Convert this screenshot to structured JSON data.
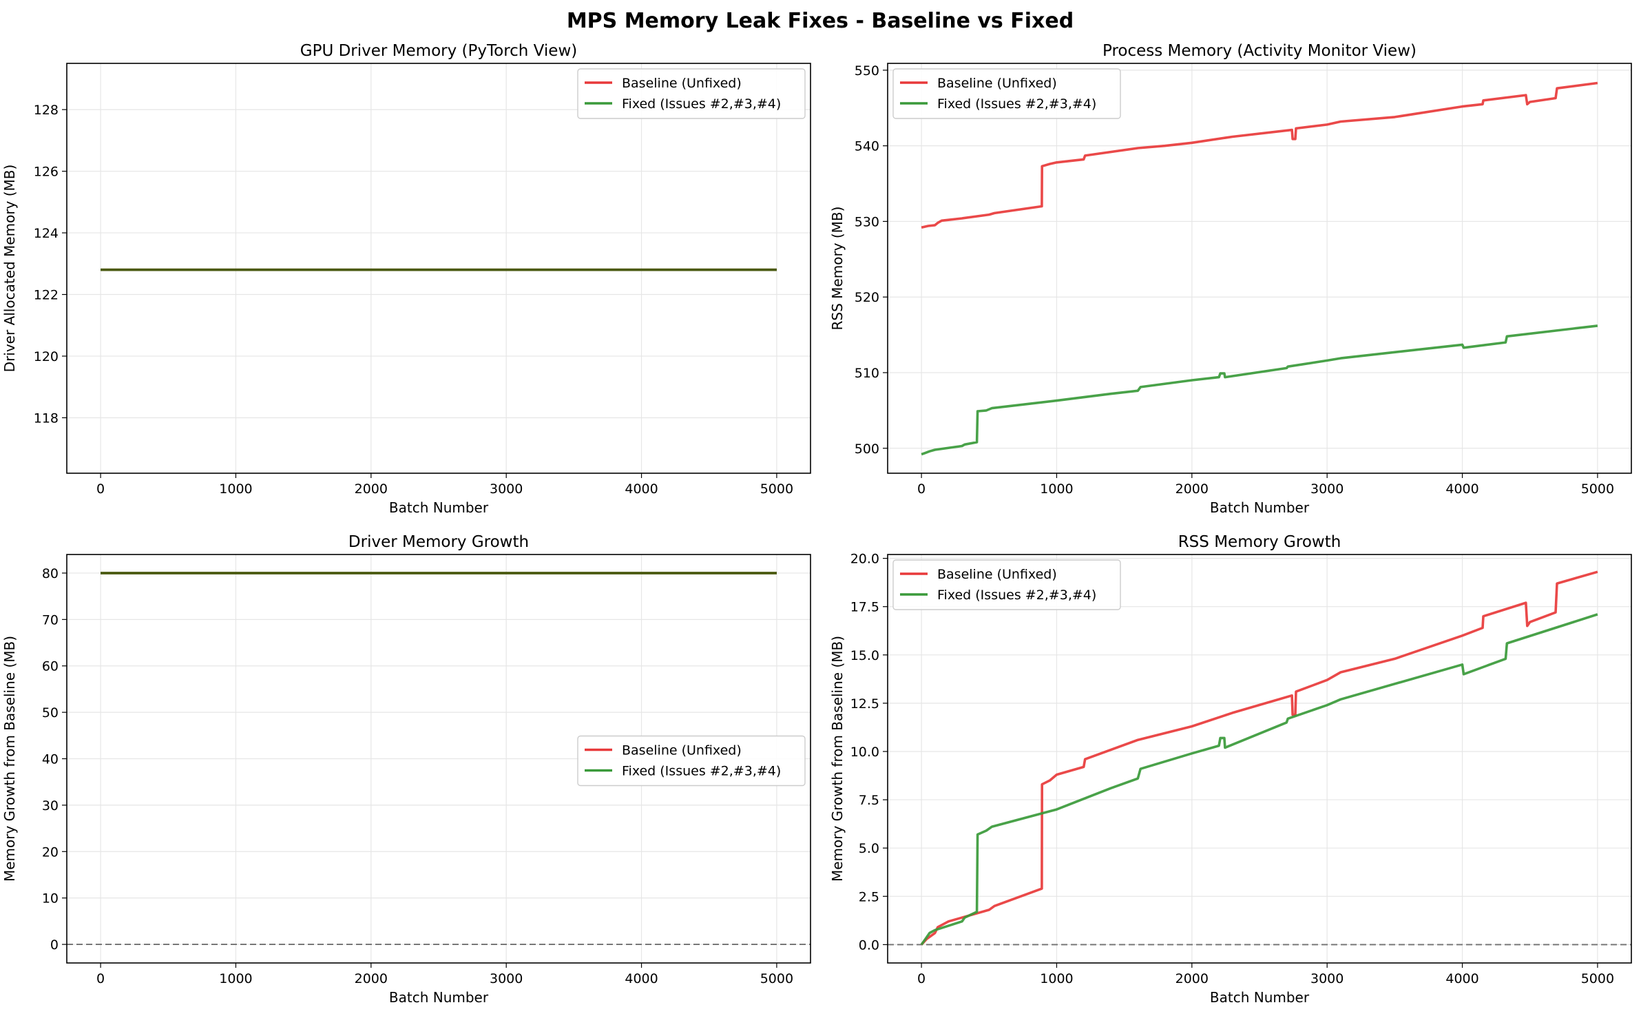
{
  "figure": {
    "title": "MPS Memory Leak Fixes - Baseline vs Fixed"
  },
  "colors": {
    "baseline": "#e8393a",
    "fixed": "#3a9a3a",
    "overlap": "#4a5a10",
    "zero_line": "#777777",
    "grid": "#e6e6e6"
  },
  "chart_data": [
    {
      "type": "line",
      "title": "GPU Driver Memory (PyTorch View)",
      "xlabel": "Batch Number",
      "ylabel": "Driver Allocated Memory (MB)",
      "xlim": [
        -250,
        5250
      ],
      "ylim": [
        116.2,
        129.5
      ],
      "xticks": [
        0,
        1000,
        2000,
        3000,
        4000,
        5000
      ],
      "yticks": [
        118,
        120,
        122,
        124,
        126,
        128
      ],
      "grid": true,
      "legend_position": "upper-right",
      "zero_line": false,
      "series": [
        {
          "name": "Baseline (Unfixed)",
          "color": "baseline",
          "points": [
            [
              0,
              122.8
            ],
            [
              5000,
              122.8
            ]
          ]
        },
        {
          "name": "Fixed (Issues #2,#3,#4)",
          "color": "fixed",
          "points": [
            [
              0,
              122.8
            ],
            [
              5000,
              122.8
            ]
          ]
        }
      ],
      "overlap_line": {
        "points": [
          [
            0,
            122.8
          ],
          [
            5000,
            122.8
          ]
        ]
      }
    },
    {
      "type": "line",
      "title": "Process Memory (Activity Monitor View)",
      "xlabel": "Batch Number",
      "ylabel": "RSS Memory (MB)",
      "xlim": [
        -250,
        5250
      ],
      "ylim": [
        496.7,
        550.9
      ],
      "xticks": [
        0,
        1000,
        2000,
        3000,
        4000,
        5000
      ],
      "yticks": [
        500,
        510,
        520,
        530,
        540,
        550
      ],
      "grid": true,
      "legend_position": "upper-left",
      "zero_line": false,
      "series": [
        {
          "name": "Baseline (Unfixed)",
          "color": "baseline",
          "points": [
            [
              0,
              529.2
            ],
            [
              50,
              529.4
            ],
            [
              100,
              529.5
            ],
            [
              120,
              529.8
            ],
            [
              150,
              530.1
            ],
            [
              300,
              530.4
            ],
            [
              500,
              530.9
            ],
            [
              540,
              531.1
            ],
            [
              890,
              532.0
            ],
            [
              892,
              537.3
            ],
            [
              950,
              537.6
            ],
            [
              1000,
              537.8
            ],
            [
              1200,
              538.2
            ],
            [
              1210,
              538.7
            ],
            [
              1600,
              539.7
            ],
            [
              1800,
              540.0
            ],
            [
              2000,
              540.4
            ],
            [
              2300,
              541.2
            ],
            [
              2740,
              542.1
            ],
            [
              2745,
              540.9
            ],
            [
              2765,
              540.9
            ],
            [
              2770,
              542.3
            ],
            [
              3000,
              542.8
            ],
            [
              3100,
              543.2
            ],
            [
              3500,
              543.8
            ],
            [
              4000,
              545.2
            ],
            [
              4150,
              545.5
            ],
            [
              4155,
              546.0
            ],
            [
              4470,
              546.7
            ],
            [
              4480,
              545.5
            ],
            [
              4500,
              545.8
            ],
            [
              4690,
              546.3
            ],
            [
              4700,
              547.6
            ],
            [
              5000,
              548.3
            ]
          ]
        },
        {
          "name": "Fixed (Issues #2,#3,#4)",
          "color": "fixed",
          "points": [
            [
              0,
              499.2
            ],
            [
              30,
              499.4
            ],
            [
              60,
              499.6
            ],
            [
              100,
              499.8
            ],
            [
              300,
              500.3
            ],
            [
              320,
              500.5
            ],
            [
              410,
              500.8
            ],
            [
              415,
              504.9
            ],
            [
              480,
              505.0
            ],
            [
              520,
              505.3
            ],
            [
              1000,
              506.3
            ],
            [
              1400,
              507.2
            ],
            [
              1600,
              507.6
            ],
            [
              1620,
              508.1
            ],
            [
              2000,
              509.0
            ],
            [
              2200,
              509.4
            ],
            [
              2210,
              509.9
            ],
            [
              2240,
              509.9
            ],
            [
              2245,
              509.4
            ],
            [
              2700,
              510.6
            ],
            [
              2710,
              510.8
            ],
            [
              3000,
              511.6
            ],
            [
              3100,
              511.9
            ],
            [
              4000,
              513.7
            ],
            [
              4010,
              513.3
            ],
            [
              4320,
              514.0
            ],
            [
              4330,
              514.8
            ],
            [
              5000,
              516.2
            ]
          ]
        }
      ]
    },
    {
      "type": "line",
      "title": "Driver Memory Growth",
      "xlabel": "Batch Number",
      "ylabel": "Memory Growth from Baseline (MB)",
      "xlim": [
        -250,
        5250
      ],
      "ylim": [
        -4.0,
        84.0
      ],
      "xticks": [
        0,
        1000,
        2000,
        3000,
        4000,
        5000
      ],
      "yticks": [
        0,
        10,
        20,
        30,
        40,
        50,
        60,
        70,
        80
      ],
      "grid": true,
      "legend_position": "center-right",
      "zero_line": true,
      "series": [
        {
          "name": "Baseline (Unfixed)",
          "color": "baseline",
          "points": [
            [
              0,
              80.0
            ],
            [
              5000,
              80.0
            ]
          ]
        },
        {
          "name": "Fixed (Issues #2,#3,#4)",
          "color": "fixed",
          "points": [
            [
              0,
              80.0
            ],
            [
              5000,
              80.0
            ]
          ]
        }
      ],
      "overlap_line": {
        "points": [
          [
            0,
            80.0
          ],
          [
            5000,
            80.0
          ]
        ]
      }
    },
    {
      "type": "line",
      "title": "RSS Memory Growth",
      "xlabel": "Batch Number",
      "ylabel": "Memory Growth from Baseline (MB)",
      "xlim": [
        -250,
        5250
      ],
      "ylim": [
        -0.95,
        20.2
      ],
      "xticks": [
        0,
        1000,
        2000,
        3000,
        4000,
        5000
      ],
      "yticks": [
        0.0,
        2.5,
        5.0,
        7.5,
        10.0,
        12.5,
        15.0,
        17.5,
        20.0
      ],
      "grid": true,
      "legend_position": "upper-left",
      "zero_line": true,
      "series": [
        {
          "name": "Baseline (Unfixed)",
          "color": "baseline",
          "points": [
            [
              0,
              0.0
            ],
            [
              40,
              0.3
            ],
            [
              100,
              0.6
            ],
            [
              120,
              0.9
            ],
            [
              200,
              1.2
            ],
            [
              350,
              1.5
            ],
            [
              500,
              1.8
            ],
            [
              540,
              2.0
            ],
            [
              890,
              2.9
            ],
            [
              892,
              8.3
            ],
            [
              950,
              8.5
            ],
            [
              1000,
              8.8
            ],
            [
              1200,
              9.2
            ],
            [
              1210,
              9.6
            ],
            [
              1600,
              10.6
            ],
            [
              2000,
              11.3
            ],
            [
              2300,
              12.0
            ],
            [
              2740,
              12.9
            ],
            [
              2745,
              11.9
            ],
            [
              2765,
              11.9
            ],
            [
              2770,
              13.1
            ],
            [
              3000,
              13.7
            ],
            [
              3100,
              14.1
            ],
            [
              3500,
              14.8
            ],
            [
              4000,
              16.0
            ],
            [
              4150,
              16.4
            ],
            [
              4155,
              17.0
            ],
            [
              4470,
              17.7
            ],
            [
              4480,
              16.5
            ],
            [
              4500,
              16.7
            ],
            [
              4690,
              17.2
            ],
            [
              4700,
              18.7
            ],
            [
              5000,
              19.3
            ]
          ]
        },
        {
          "name": "Fixed (Issues #2,#3,#4)",
          "color": "fixed",
          "points": [
            [
              0,
              0.0
            ],
            [
              30,
              0.3
            ],
            [
              60,
              0.6
            ],
            [
              100,
              0.75
            ],
            [
              300,
              1.2
            ],
            [
              320,
              1.4
            ],
            [
              410,
              1.7
            ],
            [
              415,
              5.7
            ],
            [
              480,
              5.9
            ],
            [
              520,
              6.1
            ],
            [
              1000,
              7.0
            ],
            [
              1400,
              8.1
            ],
            [
              1600,
              8.6
            ],
            [
              1620,
              9.1
            ],
            [
              2000,
              9.9
            ],
            [
              2200,
              10.3
            ],
            [
              2210,
              10.7
            ],
            [
              2240,
              10.7
            ],
            [
              2245,
              10.2
            ],
            [
              2700,
              11.5
            ],
            [
              2710,
              11.7
            ],
            [
              3000,
              12.4
            ],
            [
              3100,
              12.7
            ],
            [
              4000,
              14.5
            ],
            [
              4010,
              14.0
            ],
            [
              4320,
              14.8
            ],
            [
              4330,
              15.6
            ],
            [
              5000,
              17.1
            ]
          ]
        }
      ]
    }
  ]
}
